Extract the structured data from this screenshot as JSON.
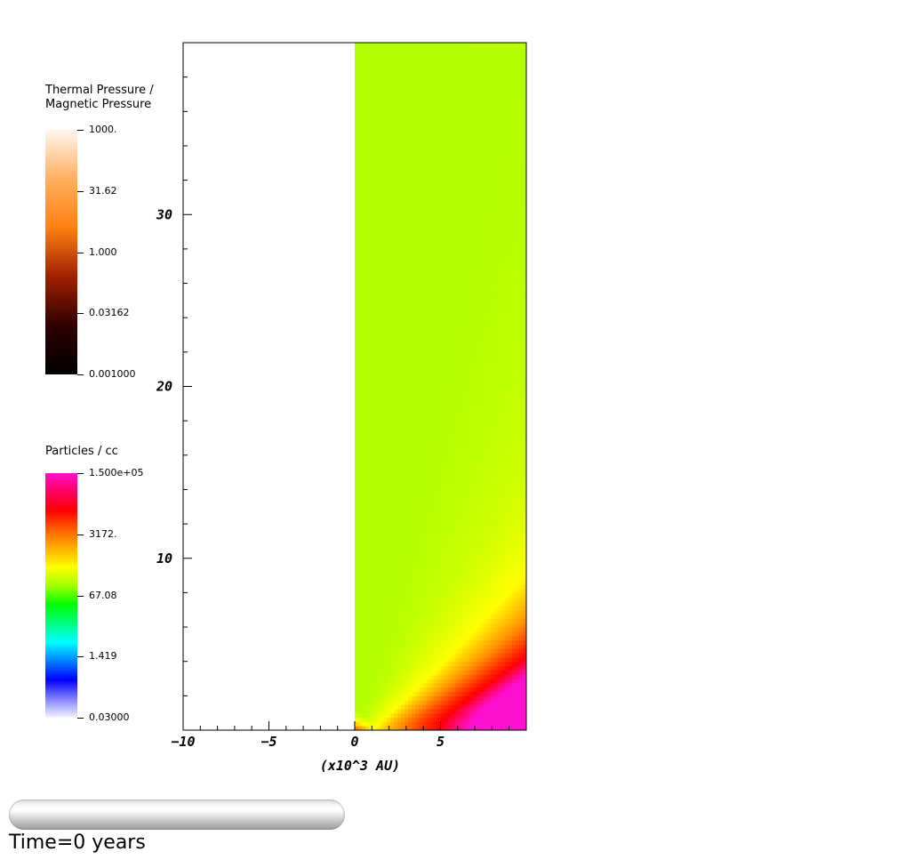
{
  "colorbars": {
    "pressure": {
      "title": "Thermal Pressure /\nMagnetic Pressure",
      "ticks": [
        "1000.",
        "31.62",
        "1.000",
        "0.03162",
        "0.001000"
      ],
      "colors": [
        "#fff6f0",
        "#ffb060",
        "#ff8010",
        "#a02000",
        "#300000",
        "#000000"
      ]
    },
    "density": {
      "title": "Particles / cc",
      "ticks": [
        "1.500e+05",
        "3172.",
        "67.08",
        "1.419",
        "0.03000"
      ],
      "colors": [
        "#ff10d0",
        "#ff0060",
        "#ff0000",
        "#ff6000",
        "#ffb000",
        "#ffff00",
        "#a0ff00",
        "#00ff00",
        "#00ff80",
        "#00ffff",
        "#0080ff",
        "#0000ff",
        "#8080ff",
        "#f4f4ff"
      ]
    }
  },
  "chart_data": {
    "type": "heatmap",
    "xlabel": "(x10^3 AU)",
    "ylabel": "",
    "xlim": [
      -10,
      10
    ],
    "ylim": [
      0,
      40
    ],
    "x_ticks": [
      -10,
      -5,
      0,
      5
    ],
    "x_tick_labels": [
      "−10",
      "−5",
      "0",
      "5"
    ],
    "y_ticks": [
      10,
      20,
      30
    ],
    "y_tick_labels": [
      "10",
      "20",
      "30"
    ],
    "data_region": {
      "x": [
        0,
        10
      ],
      "y": [
        0,
        40
      ]
    },
    "field_colors": {
      "background": "#b4ff00",
      "mid": "#ffff00",
      "inner": "#ff9000",
      "core": "#ff0000",
      "peak": "#ff10d0"
    },
    "grid": false
  },
  "time_label": "Time=0 years"
}
